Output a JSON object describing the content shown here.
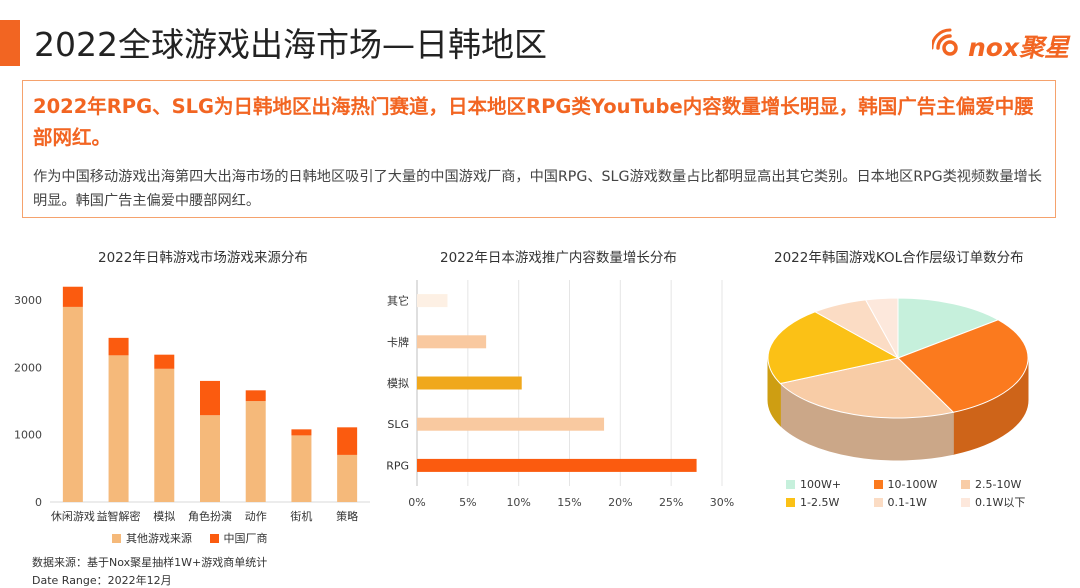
{
  "header": {
    "title": "2022全球游戏出海市场—日韩地区",
    "logo_text": "nox聚星",
    "accent_color": "#f26522"
  },
  "summary": {
    "headline": "2022年RPG、SLG为日韩地区出海热门赛道，日本地区RPG类YouTube内容数量增长明显，韩国广告主偏爱中腰部网红。",
    "body": "作为中国移动游戏出海第四大出海市场的日韩地区吸引了大量的中国游戏厂商，中国RPG、SLG游戏数量占比都明显高出其它类别。日本地区RPG类视频数量增长明显。韩国广告主偏爱中腰部网红。"
  },
  "footer": {
    "source": "数据来源：基于Nox聚星抽样1W+游戏商单统计",
    "date_range": "Date Range：2022年12月"
  },
  "chart_data": [
    {
      "type": "bar",
      "stacked": true,
      "title": "2022年日韩游戏市场游戏来源分布",
      "categories": [
        "休闲游戏",
        "益智解密",
        "模拟",
        "角色扮演",
        "动作",
        "街机",
        "策略"
      ],
      "series": [
        {
          "name": "其他游戏来源",
          "color": "#f5b97a",
          "values": [
            2900,
            2180,
            1980,
            1290,
            1500,
            990,
            700
          ]
        },
        {
          "name": "中国厂商",
          "color": "#fb5b0f",
          "values": [
            300,
            260,
            210,
            510,
            160,
            90,
            410
          ]
        }
      ],
      "yticks": [
        "0",
        "1000",
        "2000",
        "3000"
      ],
      "ylim": [
        0,
        3300
      ],
      "legend": "bottom"
    },
    {
      "type": "bar",
      "orientation": "horizontal",
      "title": "2022年日本游戏推广内容数量增长分布",
      "categories": [
        "其它",
        "卡牌",
        "模拟",
        "SLG",
        "RPG"
      ],
      "values": [
        3,
        6.8,
        10.3,
        18.4,
        27.5
      ],
      "colors": [
        "#fdf0e4",
        "#f9c9a0",
        "#f0a81c",
        "#f9c9a0",
        "#fb5b0f"
      ],
      "xticks": [
        "0%",
        "5%",
        "10%",
        "15%",
        "20%",
        "25%",
        "30%"
      ],
      "xlim": [
        0,
        30
      ],
      "grid": true
    },
    {
      "type": "pie",
      "style": "3d",
      "title": "2022年韩国游戏KOL合作层级订单数分布",
      "labels": [
        "100W+",
        "10-100W",
        "2.5-10W",
        "1-2.5W",
        "0.1-1W",
        "0.1W以下"
      ],
      "values": [
        14,
        29,
        25,
        21,
        7,
        4
      ],
      "colors": [
        "#c6f0dc",
        "#fb7a1e",
        "#f8cca6",
        "#fbc116",
        "#fbdcc4",
        "#fde8dc"
      ],
      "legend": "bottom"
    }
  ]
}
